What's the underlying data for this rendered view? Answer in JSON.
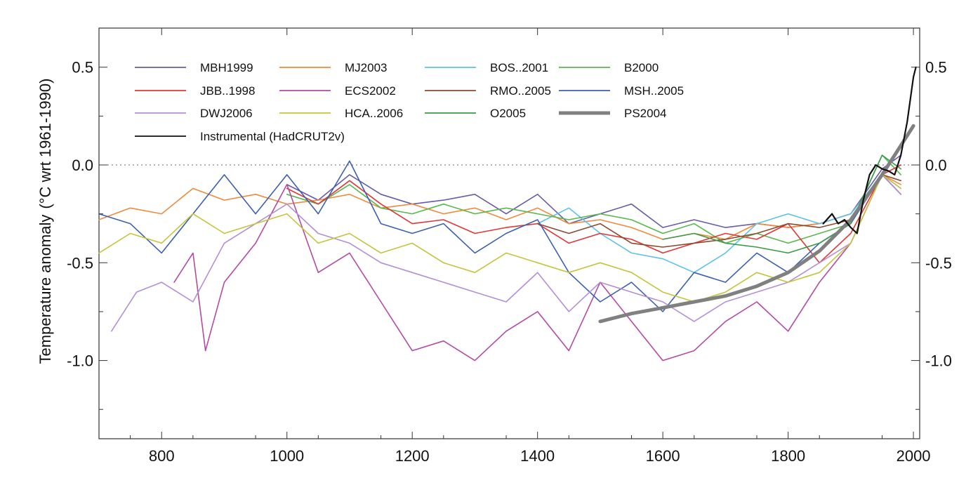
{
  "chart_data": {
    "type": "line",
    "xlabel": "",
    "ylabel": "Temperature anomaly",
    "ylabel_unit": "(°C wrt 1961-1990)",
    "xlim": [
      700,
      2010
    ],
    "ylim": [
      -1.4,
      0.7
    ],
    "x_ticks": [
      800,
      1000,
      1200,
      1400,
      1600,
      1800,
      2000
    ],
    "x_tick_labels": [
      "800",
      "1000",
      "1200",
      "1400",
      "1600",
      "1800",
      "2000"
    ],
    "y_ticks": [
      0.5,
      0.0,
      -0.5,
      -1.0
    ],
    "y_tick_labels": [
      "0.5",
      "0.0",
      "-0.5",
      "-1.0"
    ],
    "right_y_tick_labels": [
      "0.5",
      "0.0",
      "-0.5",
      "-1.0"
    ],
    "zero_line": "dotted",
    "grid": false,
    "legend_position": "top-left",
    "series": [
      {
        "name": "MBH1999",
        "color": "#6a5aa8",
        "width": 1.6,
        "x": [
          1000,
          1050,
          1100,
          1150,
          1200,
          1250,
          1300,
          1350,
          1400,
          1450,
          1500,
          1550,
          1600,
          1650,
          1700,
          1750,
          1800,
          1850,
          1900,
          1950,
          1980
        ],
        "y": [
          -0.1,
          -0.18,
          -0.05,
          -0.15,
          -0.2,
          -0.18,
          -0.15,
          -0.25,
          -0.15,
          -0.3,
          -0.25,
          -0.2,
          -0.32,
          -0.28,
          -0.32,
          -0.3,
          -0.32,
          -0.3,
          -0.25,
          -0.02,
          0.05
        ]
      },
      {
        "name": "MJ2003",
        "color": "#f08a3c",
        "width": 1.6,
        "x": [
          700,
          750,
          800,
          850,
          900,
          950,
          1000,
          1050,
          1100,
          1150,
          1200,
          1250,
          1300,
          1350,
          1400,
          1450,
          1500,
          1550,
          1600,
          1650,
          1700,
          1750,
          1800,
          1850,
          1900,
          1950,
          1980
        ],
        "y": [
          -0.28,
          -0.22,
          -0.25,
          -0.12,
          -0.18,
          -0.15,
          -0.2,
          -0.18,
          -0.15,
          -0.22,
          -0.2,
          -0.25,
          -0.22,
          -0.28,
          -0.22,
          -0.3,
          -0.28,
          -0.32,
          -0.38,
          -0.35,
          -0.38,
          -0.3,
          -0.32,
          -0.3,
          -0.25,
          -0.05,
          -0.1
        ]
      },
      {
        "name": "BOS..2001",
        "color": "#5bc1ea",
        "width": 1.6,
        "x": [
          1400,
          1450,
          1500,
          1550,
          1600,
          1650,
          1700,
          1750,
          1800,
          1850,
          1900,
          1950,
          1980
        ],
        "y": [
          -0.3,
          -0.22,
          -0.35,
          -0.45,
          -0.48,
          -0.55,
          -0.45,
          -0.3,
          -0.25,
          -0.3,
          -0.25,
          -0.05,
          -0.12
        ]
      },
      {
        "name": "B2000",
        "color": "#58b84a",
        "width": 1.6,
        "x": [
          1000,
          1050,
          1100,
          1150,
          1200,
          1250,
          1300,
          1350,
          1400,
          1450,
          1500,
          1550,
          1600,
          1650,
          1700,
          1750,
          1800,
          1850,
          1900,
          1950,
          1980
        ],
        "y": [
          -0.15,
          -0.2,
          -0.1,
          -0.22,
          -0.25,
          -0.2,
          -0.25,
          -0.22,
          -0.25,
          -0.28,
          -0.25,
          -0.28,
          -0.35,
          -0.3,
          -0.4,
          -0.35,
          -0.4,
          -0.35,
          -0.3,
          0.05,
          -0.05
        ]
      },
      {
        "name": "JBB..1998",
        "color": "#e23636",
        "width": 1.6,
        "x": [
          1000,
          1050,
          1100,
          1150,
          1200,
          1250,
          1300,
          1350,
          1400,
          1450,
          1500,
          1550,
          1600,
          1650,
          1700,
          1750,
          1800,
          1850,
          1900,
          1950,
          1980
        ],
        "y": [
          -0.12,
          -0.2,
          -0.08,
          -0.2,
          -0.3,
          -0.28,
          -0.35,
          -0.32,
          -0.3,
          -0.4,
          -0.35,
          -0.38,
          -0.45,
          -0.4,
          -0.35,
          -0.38,
          -0.3,
          -0.5,
          -0.35,
          -0.05,
          0.0
        ]
      },
      {
        "name": "ECS2002",
        "color": "#b34aa4",
        "width": 1.6,
        "x": [
          820,
          850,
          870,
          900,
          950,
          1000,
          1050,
          1100,
          1150,
          1200,
          1250,
          1300,
          1350,
          1400,
          1450,
          1500,
          1550,
          1600,
          1650,
          1700,
          1750,
          1800,
          1850,
          1900,
          1950,
          1980
        ],
        "y": [
          -0.6,
          -0.45,
          -0.95,
          -0.6,
          -0.4,
          -0.1,
          -0.55,
          -0.45,
          -0.7,
          -0.95,
          -0.9,
          -1.0,
          -0.85,
          -0.75,
          -0.95,
          -0.6,
          -0.8,
          -1.0,
          -0.95,
          -0.8,
          -0.7,
          -0.85,
          -0.6,
          -0.4,
          -0.05,
          -0.15
        ]
      },
      {
        "name": "RMO..2005",
        "color": "#8b4a2e",
        "width": 1.6,
        "x": [
          1400,
          1450,
          1500,
          1550,
          1600,
          1650,
          1700,
          1750,
          1800,
          1850,
          1900,
          1950,
          1980
        ],
        "y": [
          -0.3,
          -0.35,
          -0.3,
          -0.4,
          -0.42,
          -0.4,
          -0.38,
          -0.35,
          -0.3,
          -0.32,
          -0.28,
          -0.05,
          -0.08
        ]
      },
      {
        "name": "MSH..2005",
        "color": "#3d5fb0",
        "width": 1.6,
        "x": [
          700,
          750,
          800,
          850,
          900,
          950,
          1000,
          1050,
          1100,
          1150,
          1200,
          1250,
          1300,
          1350,
          1400,
          1450,
          1500,
          1550,
          1600,
          1650,
          1700,
          1750,
          1800,
          1850,
          1900,
          1950,
          1980
        ],
        "y": [
          -0.25,
          -0.3,
          -0.45,
          -0.25,
          -0.05,
          -0.25,
          -0.05,
          -0.25,
          0.02,
          -0.3,
          -0.35,
          -0.3,
          -0.45,
          -0.35,
          -0.28,
          -0.55,
          -0.7,
          -0.6,
          -0.75,
          -0.55,
          -0.6,
          -0.45,
          -0.55,
          -0.4,
          -0.3,
          -0.05,
          -0.15
        ]
      },
      {
        "name": "DWJ2006",
        "color": "#b28fd6",
        "width": 1.6,
        "x": [
          720,
          760,
          800,
          850,
          900,
          950,
          1000,
          1050,
          1100,
          1150,
          1200,
          1250,
          1300,
          1350,
          1400,
          1450,
          1500,
          1550,
          1600,
          1650,
          1700,
          1750,
          1800,
          1850,
          1900,
          1950,
          1980
        ],
        "y": [
          -0.85,
          -0.65,
          -0.6,
          -0.7,
          -0.4,
          -0.3,
          -0.2,
          -0.35,
          -0.4,
          -0.5,
          -0.55,
          -0.6,
          -0.65,
          -0.7,
          -0.55,
          -0.75,
          -0.6,
          -0.65,
          -0.7,
          -0.8,
          -0.7,
          -0.65,
          -0.6,
          -0.5,
          -0.4,
          -0.05,
          -0.15
        ]
      },
      {
        "name": "HCA..2006",
        "color": "#c4c43a",
        "width": 1.6,
        "x": [
          700,
          750,
          800,
          850,
          900,
          950,
          1000,
          1050,
          1100,
          1150,
          1200,
          1250,
          1300,
          1350,
          1400,
          1450,
          1500,
          1550,
          1600,
          1650,
          1700,
          1750,
          1800,
          1850,
          1900,
          1950,
          1980
        ],
        "y": [
          -0.45,
          -0.35,
          -0.4,
          -0.25,
          -0.35,
          -0.3,
          -0.25,
          -0.4,
          -0.35,
          -0.45,
          -0.4,
          -0.5,
          -0.55,
          -0.45,
          -0.5,
          -0.55,
          -0.5,
          -0.55,
          -0.65,
          -0.7,
          -0.65,
          -0.55,
          -0.6,
          -0.55,
          -0.4,
          -0.05,
          -0.12
        ]
      },
      {
        "name": "O2005",
        "color": "#3a9a4a",
        "width": 1.6,
        "x": [
          1600,
          1650,
          1700,
          1750,
          1800,
          1850,
          1900,
          1950,
          1980
        ],
        "y": [
          -0.38,
          -0.35,
          -0.4,
          -0.42,
          -0.45,
          -0.4,
          -0.3,
          0.05,
          -0.02
        ]
      },
      {
        "name": "PS2004",
        "color": "#808080",
        "width": 5,
        "x": [
          1500,
          1550,
          1600,
          1650,
          1700,
          1750,
          1800,
          1850,
          1900,
          1950,
          2000
        ],
        "y": [
          -0.8,
          -0.76,
          -0.73,
          -0.7,
          -0.67,
          -0.62,
          -0.55,
          -0.44,
          -0.28,
          -0.05,
          0.2
        ]
      },
      {
        "name": "Instrumental (HadCRUT2v)",
        "color": "#111111",
        "width": 2.2,
        "x": [
          1856,
          1870,
          1880,
          1890,
          1900,
          1910,
          1920,
          1930,
          1940,
          1950,
          1960,
          1970,
          1980,
          1990,
          2000,
          2004
        ],
        "y": [
          -0.3,
          -0.25,
          -0.3,
          -0.28,
          -0.32,
          -0.35,
          -0.18,
          -0.05,
          0.0,
          -0.02,
          -0.03,
          -0.05,
          0.05,
          0.22,
          0.45,
          0.5
        ]
      }
    ],
    "legend_rows": [
      [
        "MBH1999",
        "MJ2003",
        "BOS..2001",
        "B2000"
      ],
      [
        "JBB..1998",
        "ECS2002",
        "RMO..2005",
        "MSH..2005"
      ],
      [
        "DWJ2006",
        "HCA..2006",
        "O2005",
        "PS2004"
      ],
      [
        "Instrumental (HadCRUT2v)"
      ]
    ]
  }
}
